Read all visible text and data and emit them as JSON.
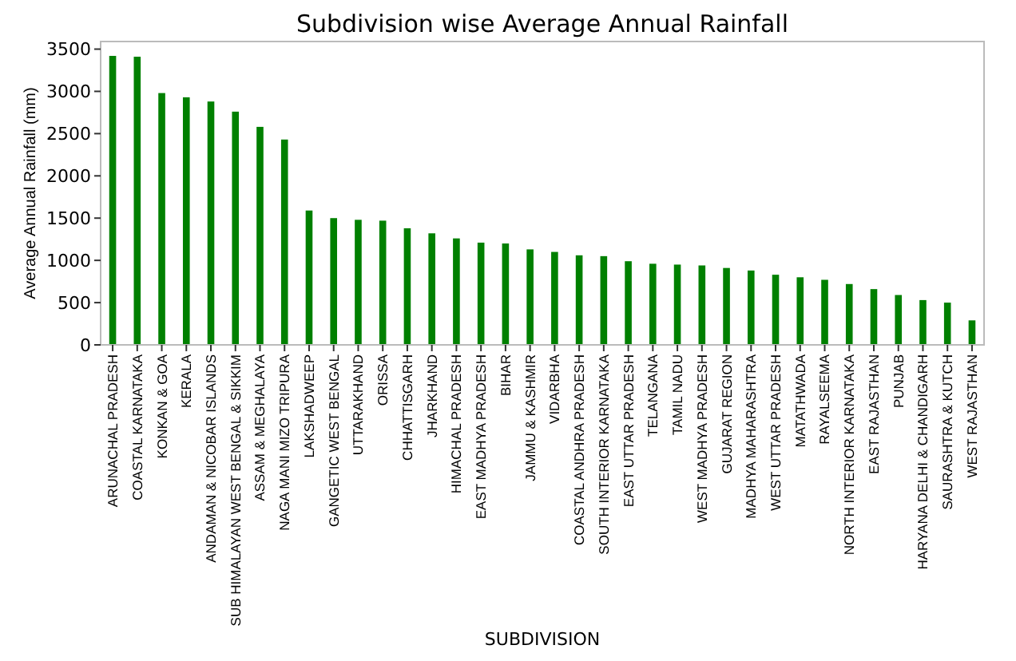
{
  "chart_data": {
    "type": "bar",
    "title": "Subdivision wise Average Annual Rainfall",
    "xlabel": "SUBDIVISION",
    "ylabel": "Average Annual Rainfall (mm)",
    "categories": [
      "ARUNACHAL PRADESH",
      "COASTAL KARNATAKA",
      "KONKAN & GOA",
      "KERALA",
      "ANDAMAN & NICOBAR ISLANDS",
      "SUB HIMALAYAN WEST BENGAL & SIKKIM",
      "ASSAM & MEGHALAYA",
      "NAGA MANI MIZO TRIPURA",
      "LAKSHADWEEP",
      "GANGETIC WEST BENGAL",
      "UTTARAKHAND",
      "ORISSA",
      "CHHATTISGARH",
      "JHARKHAND",
      "HIMACHAL PRADESH",
      "EAST MADHYA PRADESH",
      "BIHAR",
      "JAMMU & KASHMIR",
      "VIDARBHA",
      "COASTAL ANDHRA PRADESH",
      "SOUTH INTERIOR KARNATAKA",
      "EAST UTTAR PRADESH",
      "TELANGANA",
      "TAMIL NADU",
      "WEST MADHYA PRADESH",
      "GUJARAT REGION",
      "MADHYA MAHARASHTRA",
      "WEST UTTAR PRADESH",
      "MATATHWADA",
      "RAYALSEEMA",
      "NORTH INTERIOR KARNATAKA",
      "EAST RAJASTHAN",
      "PUNJAB",
      "HARYANA DELHI & CHANDIGARH",
      "SAURASHTRA & KUTCH",
      "WEST RAJASTHAN"
    ],
    "values": [
      3420,
      3410,
      2980,
      2930,
      2880,
      2760,
      2580,
      2430,
      1590,
      1500,
      1480,
      1470,
      1380,
      1320,
      1260,
      1210,
      1200,
      1130,
      1100,
      1060,
      1050,
      990,
      960,
      950,
      940,
      910,
      880,
      830,
      800,
      770,
      720,
      660,
      590,
      530,
      500,
      290
    ],
    "color": "#008000",
    "ylim": [
      0,
      3590
    ],
    "yticks": [
      0,
      500,
      1000,
      1500,
      2000,
      2500,
      3000,
      3500
    ],
    "grid": false
  }
}
